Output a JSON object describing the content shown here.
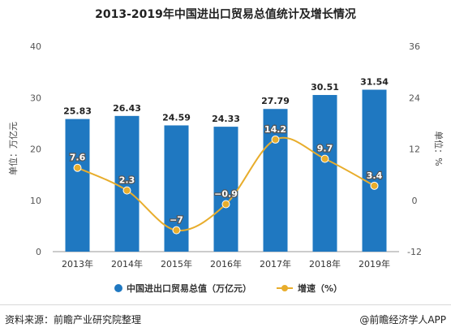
{
  "chart_data": {
    "type": "bar+line",
    "title": "2013-2019年中国进出口贸易总值统计及增长情况",
    "categories": [
      "2013年",
      "2014年",
      "2015年",
      "2016年",
      "2017年",
      "2018年",
      "2019年"
    ],
    "series": [
      {
        "name": "中国进出口贸易总值（万亿元）",
        "type": "bar",
        "axis": "left",
        "values": [
          25.83,
          26.43,
          24.59,
          24.33,
          27.79,
          30.51,
          31.54
        ],
        "labels": [
          "25.83",
          "26.43",
          "24.59",
          "24.33",
          "27.79",
          "30.51",
          "31.54"
        ],
        "color": "#1f78c1"
      },
      {
        "name": "增速（%）",
        "type": "line",
        "axis": "right",
        "values": [
          7.6,
          2.3,
          -7,
          -0.9,
          14.2,
          9.7,
          3.4
        ],
        "labels": [
          "7.6",
          "2.3",
          "−7",
          "−0.9",
          "14.2",
          "9.7",
          "3.4"
        ],
        "color": "#e8ad2c"
      }
    ],
    "y_left": {
      "label": "单位：万亿元",
      "ylim": [
        0,
        40
      ],
      "ticks": [
        "0",
        "10",
        "20",
        "30",
        "40"
      ]
    },
    "y_right": {
      "label": "单位：%",
      "ylim": [
        -12,
        36
      ],
      "ticks": [
        "-12",
        "0",
        "12",
        "24",
        "36"
      ]
    },
    "legend_position": "bottom-center",
    "grid": false
  },
  "footer": {
    "source": "资料来源：前瞻产业研究院整理",
    "brand": "@前瞻经济学人APP"
  }
}
